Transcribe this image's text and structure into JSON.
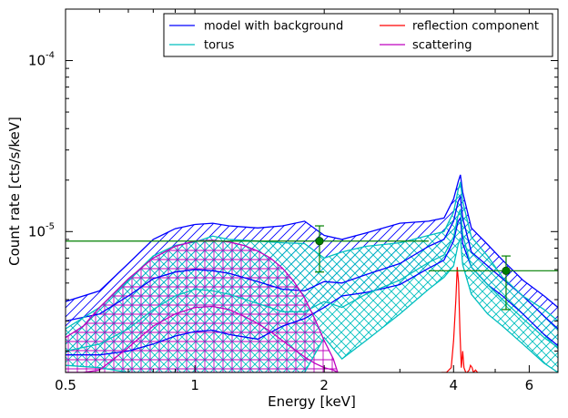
{
  "chart_data": {
    "type": "line",
    "title": "",
    "xlabel": "Energy [keV]",
    "ylabel": "Count rate [cts/s/keV]",
    "x_scale": "log",
    "y_scale": "log",
    "xlim": [
      0.5,
      7.0
    ],
    "ylim": [
      1.5e-06,
      0.0002
    ],
    "x_ticks": [
      {
        "value": 0.5,
        "label": "0.5"
      },
      {
        "value": 1,
        "label": "1"
      },
      {
        "value": 2,
        "label": "2"
      },
      {
        "value": 4,
        "label": "4"
      },
      {
        "value": 6,
        "label": "6"
      }
    ],
    "y_ticks": [
      {
        "value": 1e-05,
        "base": "10",
        "exp": "-5"
      },
      {
        "value": 0.0001,
        "base": "10",
        "exp": "-4"
      }
    ],
    "grid": false,
    "legend_position": "top-right",
    "legend": [
      {
        "label": "model with background",
        "color": "#0000ff"
      },
      {
        "label": "reflection component",
        "color": "#ff0000"
      },
      {
        "label": "torus",
        "color": "#00bfbf"
      },
      {
        "label": "scattering",
        "color": "#bf00bf"
      }
    ],
    "bands": [
      {
        "name": "model with background",
        "color": "#0000ff",
        "hatch": "diagonal",
        "x": [
          0.5,
          0.6,
          0.7,
          0.8,
          0.9,
          1.0,
          1.1,
          1.2,
          1.4,
          1.6,
          1.8,
          2.0,
          2.2,
          2.5,
          3.0,
          3.5,
          3.8,
          4.0,
          4.1,
          4.15,
          4.2,
          4.4,
          4.8,
          5.2,
          5.8,
          6.5,
          7.0
        ],
        "upper": [
          3.9e-06,
          4.5e-06,
          6.5e-06,
          9e-06,
          1.04e-05,
          1.1e-05,
          1.12e-05,
          1.08e-05,
          1.05e-05,
          1.08e-05,
          1.15e-05,
          9.5e-06,
          9e-06,
          9.8e-06,
          1.12e-05,
          1.15e-05,
          1.2e-05,
          1.55e-05,
          1.95e-05,
          2.15e-05,
          1.7e-05,
          1.05e-05,
          8.4e-06,
          6.8e-06,
          5.2e-06,
          4.2e-06,
          3.6e-06
        ],
        "lower": [
          1.9e-06,
          1.9e-06,
          2e-06,
          2.2e-06,
          2.45e-06,
          2.6e-06,
          2.65e-06,
          2.5e-06,
          2.35e-06,
          2.8e-06,
          3.1e-06,
          3.6e-06,
          4.2e-06,
          4.4e-06,
          4.9e-06,
          6.1e-06,
          6.8e-06,
          8.8e-06,
          1.15e-05,
          1.2e-05,
          8.5e-06,
          6.2e-06,
          4.9e-06,
          4.2e-06,
          3.3e-06,
          2.5e-06,
          2.15e-06
        ],
        "lines": [
          [
            3e-06,
            3.3e-06,
            4.2e-06,
            5.3e-06,
            5.8e-06,
            6e-06,
            5.9e-06,
            5.7e-06,
            5.1e-06,
            4.6e-06,
            4.5e-06,
            5.1e-06,
            5e-06,
            5.6e-06,
            6.5e-06,
            8.2e-06,
            9e-06,
            1.15e-05,
            1.5e-05,
            1.6e-05,
            1.2e-05,
            7.6e-06,
            6.3e-06,
            5.3e-06,
            4.2e-06,
            3.2e-06,
            2.7e-06
          ]
        ]
      },
      {
        "name": "torus",
        "color": "#00bfbf",
        "hatch": "cross-diagonal",
        "x": [
          0.5,
          0.6,
          0.7,
          0.8,
          0.9,
          1.0,
          1.1,
          1.2,
          1.4,
          1.6,
          1.8,
          2.0,
          2.2,
          2.5,
          3.0,
          3.5,
          3.8,
          4.0,
          4.1,
          4.15,
          4.2,
          4.4,
          4.8,
          5.2,
          5.8,
          6.5,
          7.0
        ],
        "upper": [
          2.7e-06,
          3.6e-06,
          5.2e-06,
          7.2e-06,
          8.3e-06,
          8.7e-06,
          9.4e-06,
          9e-06,
          8.8e-06,
          8.6e-06,
          8.5e-06,
          7e-06,
          7.6e-06,
          8.2e-06,
          8.6e-06,
          9.5e-06,
          1e-05,
          1.3e-05,
          1.75e-05,
          1.95e-05,
          1.5e-05,
          9.3e-06,
          7.2e-06,
          5.4e-06,
          4.2e-06,
          3.5e-06,
          3e-06
        ],
        "lower": [
          1.65e-06,
          1.6e-06,
          1.5e-06,
          1.5e-06,
          1.5e-06,
          1.5e-06,
          1.5e-06,
          1.5e-06,
          1.5e-06,
          1.5e-06,
          1.5e-06,
          2.4e-06,
          1.8e-06,
          2.3e-06,
          3.3e-06,
          4.6e-06,
          5.4e-06,
          6.3e-06,
          8.4e-06,
          9.2e-06,
          6.4e-06,
          4.3e-06,
          3.3e-06,
          2.8e-06,
          2.2e-06,
          1.7e-06,
          1.5e-06
        ],
        "lines": [
          [
            2e-06,
            2.2e-06,
            2.7e-06,
            3.5e-06,
            4.2e-06,
            4.6e-06,
            4.5e-06,
            4.3e-06,
            3.8e-06,
            3.4e-06,
            3.4e-06,
            3.9e-06,
            3.6e-06,
            4.3e-06,
            5.2e-06,
            6.6e-06,
            7.3e-06,
            9.3e-06,
            1.25e-05,
            1.35e-05,
            9.6e-06,
            6.2e-06,
            4.9e-06,
            4e-06,
            3.1e-06,
            2.4e-06,
            2.1e-06
          ]
        ]
      },
      {
        "name": "scattering",
        "color": "#bf00bf",
        "hatch": "grid",
        "x": [
          0.5,
          0.55,
          0.6,
          0.7,
          0.8,
          0.9,
          1.0,
          1.1,
          1.2,
          1.3,
          1.4,
          1.5,
          1.6,
          1.7,
          1.8,
          1.9,
          2.0,
          2.1,
          2.15
        ],
        "upper": [
          2.4e-06,
          2.8e-06,
          3.6e-06,
          5.3e-06,
          7e-06,
          8.2e-06,
          8.8e-06,
          8.9e-06,
          8.7e-06,
          8.3e-06,
          7.7e-06,
          7e-06,
          6.1e-06,
          5.1e-06,
          4.1e-06,
          3.1e-06,
          2.3e-06,
          1.8e-06,
          1.5e-06
        ],
        "lower": [
          1.5e-06,
          1.5e-06,
          1.5e-06,
          1.5e-06,
          1.5e-06,
          1.5e-06,
          1.5e-06,
          1.5e-06,
          1.5e-06,
          1.5e-06,
          1.5e-06,
          1.5e-06,
          1.5e-06,
          1.5e-06,
          1.5e-06,
          1.5e-06,
          1.5e-06,
          1.5e-06,
          1.5e-06
        ],
        "lines": [
          [
            1.5e-06,
            1.5e-06,
            1.55e-06,
            2.1e-06,
            2.8e-06,
            3.3e-06,
            3.6e-06,
            3.65e-06,
            3.5e-06,
            3.2e-06,
            2.9e-06,
            2.6e-06,
            2.3e-06,
            2.05e-06,
            1.85e-06,
            1.7e-06,
            1.6e-06,
            1.55e-06,
            1.5e-06
          ]
        ]
      }
    ],
    "reflection": {
      "name": "reflection component",
      "color": "#ff0000",
      "x": [
        3.75,
        3.85,
        3.95,
        4.0,
        4.05,
        4.08,
        4.11,
        4.14,
        4.17,
        4.2,
        4.23,
        4.27,
        4.3,
        4.35,
        4.38,
        4.42,
        4.45,
        4.5,
        4.55
      ],
      "y": [
        1.5e-06,
        1.5e-06,
        1.6e-06,
        2.3e-06,
        4e-06,
        6.2e-06,
        5e-06,
        2.6e-06,
        1.6e-06,
        2e-06,
        1.6e-06,
        1.5e-06,
        1.5e-06,
        1.55e-06,
        1.65e-06,
        1.6e-06,
        1.5e-06,
        1.55e-06,
        1.5e-06
      ]
    },
    "data_points": {
      "name": "data",
      "color": "#007f00",
      "points": [
        {
          "x": 1.95,
          "y": 8.8e-06,
          "xerr": [
            0.5,
            3.5
          ],
          "yerr": [
            5.8e-06,
            1.08e-05
          ]
        },
        {
          "x": 5.3,
          "y": 5.9e-06,
          "xerr": [
            3.5,
            7.0
          ],
          "yerr": [
            3.5e-06,
            7.2e-06
          ]
        }
      ]
    }
  }
}
